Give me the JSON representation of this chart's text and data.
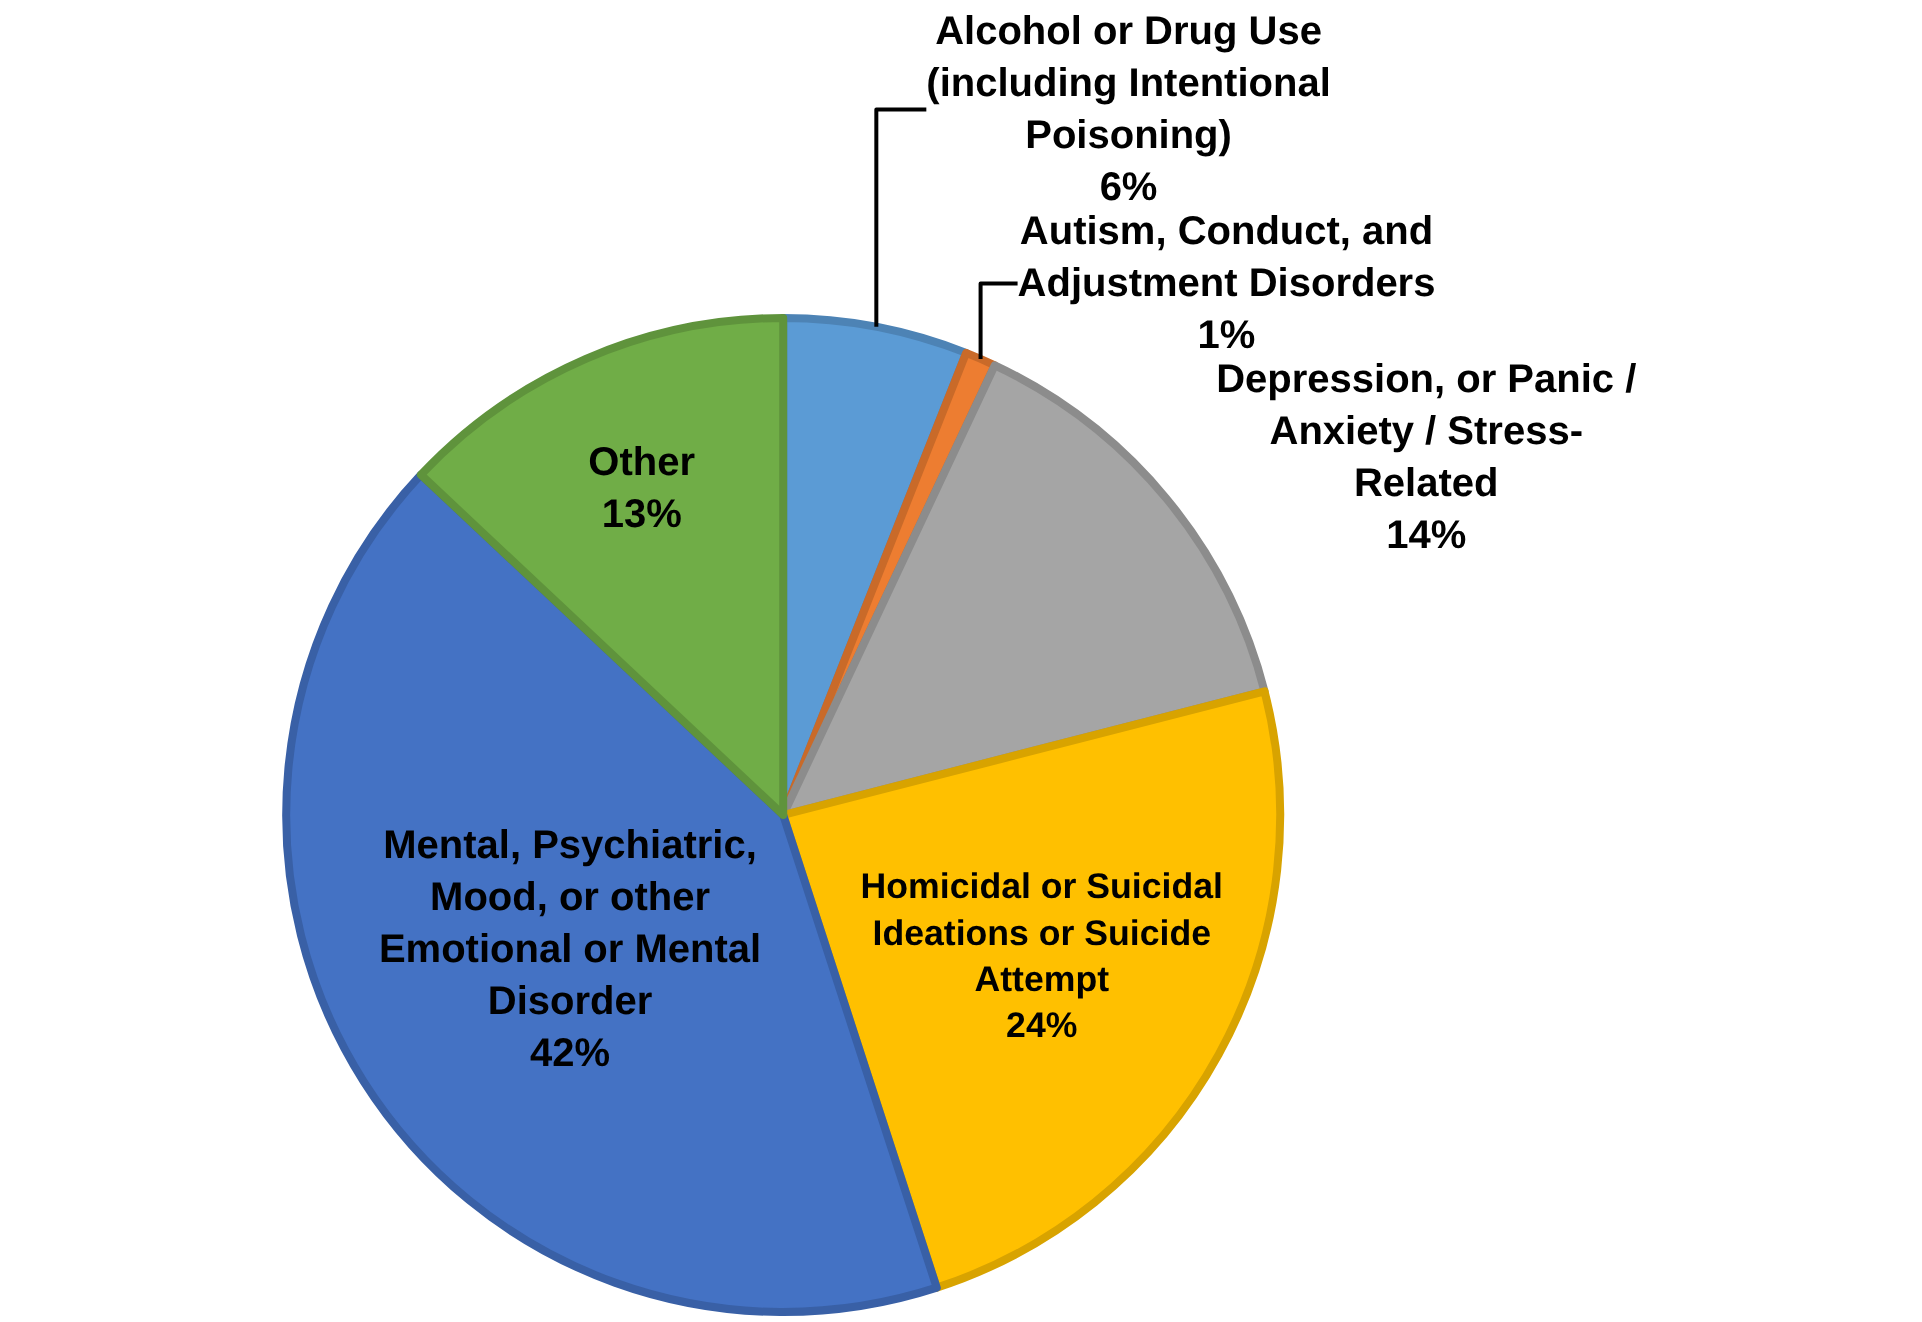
{
  "chart_data": {
    "type": "pie",
    "categories": [
      "Alcohol or Drug Use (including Intentional Poisoning)",
      "Autism, Conduct, and Adjustment Disorders",
      "Depression, or Panic / Anxiety / Stress-Related",
      "Homicidal or Suicidal Ideations or Suicide Attempt",
      "Mental, Psychiatric, Mood, or other Emotional or Mental Disorder",
      "Other"
    ],
    "values": [
      6,
      1,
      14,
      24,
      42,
      13
    ],
    "value_labels": [
      "6%",
      "1%",
      "14%",
      "24%",
      "42%",
      "13%"
    ],
    "colors": [
      "#5b9bd5",
      "#ed7d31",
      "#a5a5a5",
      "#ffc000",
      "#4472c4",
      "#70ad47"
    ],
    "legend": false
  }
}
